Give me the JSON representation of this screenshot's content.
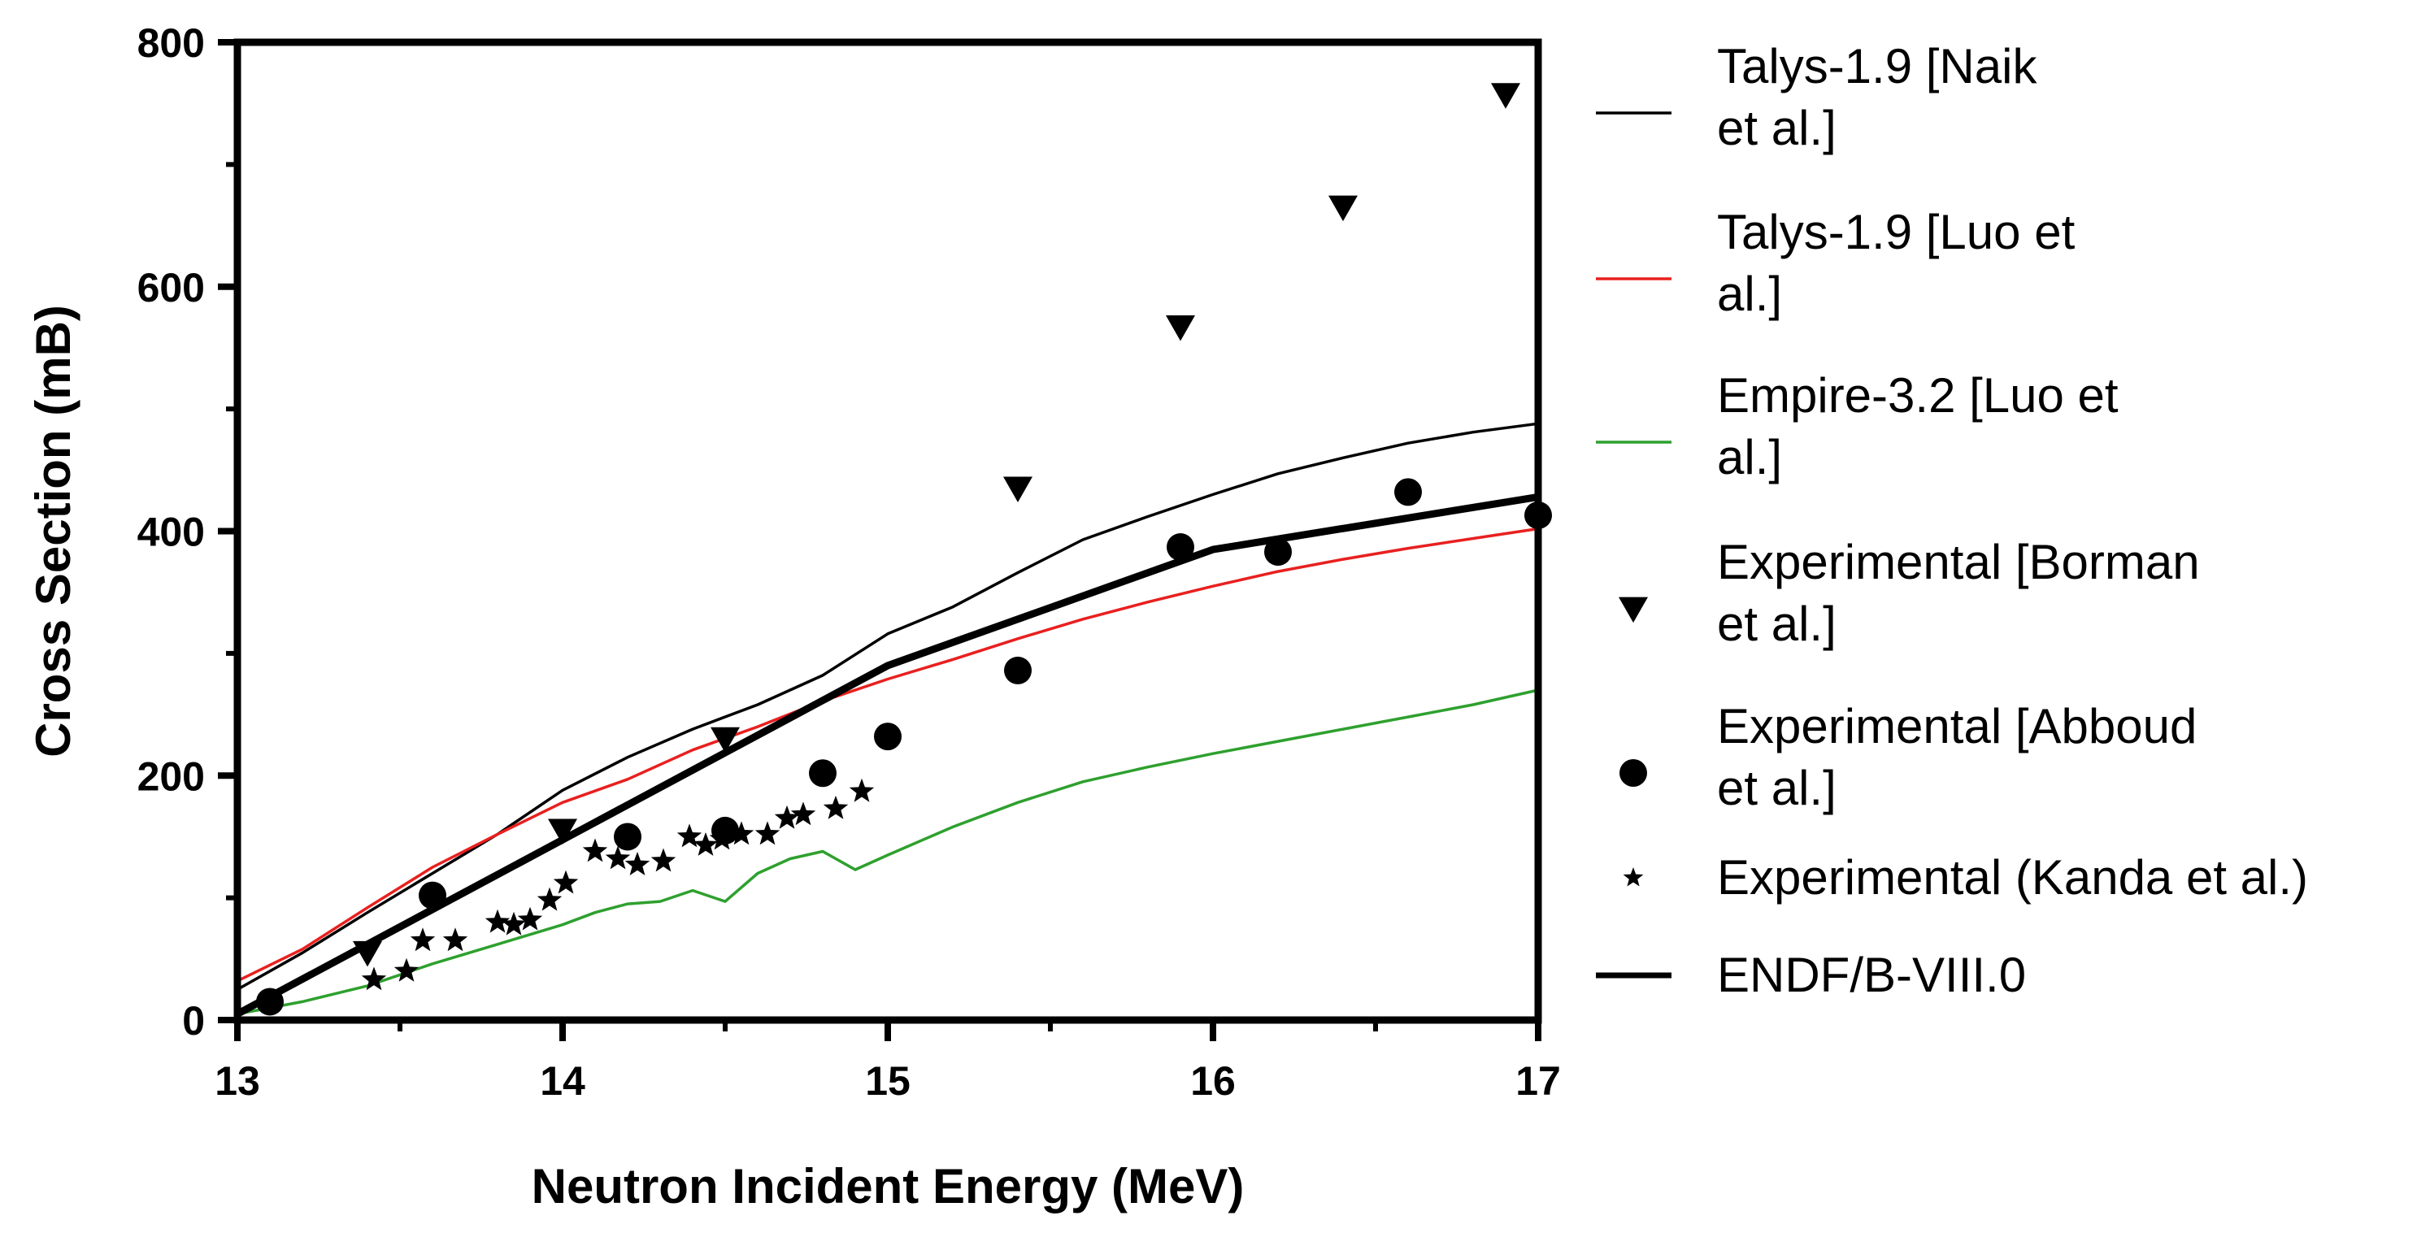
{
  "chart_data": {
    "type": "line",
    "title": "",
    "xlabel": "Neutron Incident  Energy (MeV)",
    "ylabel": "Cross  Section (mB)",
    "xlim": [
      13,
      17
    ],
    "ylim": [
      0,
      800
    ],
    "xticks": [
      13,
      14,
      15,
      16,
      17
    ],
    "yticks": [
      0,
      200,
      400,
      600,
      800
    ],
    "grid": false,
    "legend_position": "right",
    "series": [
      {
        "name": "Talys-1.9 [Naik et al.]",
        "legend_lines": [
          "Talys-1.9 [Naik",
          "et al.]"
        ],
        "kind": "line",
        "color": "#000000",
        "line_weight": "thin",
        "x": [
          13.0,
          13.2,
          13.4,
          13.6,
          13.8,
          14.0,
          14.2,
          14.4,
          14.6,
          14.8,
          15.0,
          15.2,
          15.4,
          15.6,
          15.8,
          16.0,
          16.2,
          16.4,
          16.6,
          16.8,
          17.0
        ],
        "y": [
          25,
          55,
          88,
          120,
          152,
          188,
          215,
          238,
          258,
          282,
          316,
          338,
          366,
          393,
          412,
          430,
          447,
          460,
          472,
          481,
          488
        ]
      },
      {
        "name": "Talys-1.9 [Luo et al.]",
        "legend_lines": [
          "Talys-1.9 [Luo et",
          "al.]"
        ],
        "kind": "line",
        "color": "#e8201f",
        "line_weight": "thin",
        "x": [
          13.0,
          13.2,
          13.4,
          13.6,
          13.8,
          14.0,
          14.2,
          14.4,
          14.6,
          14.8,
          15.0,
          15.2,
          15.4,
          15.6,
          15.8,
          16.0,
          16.2,
          16.4,
          16.6,
          16.8,
          17.0
        ],
        "y": [
          32,
          58,
          92,
          125,
          152,
          178,
          197,
          221,
          240,
          261,
          279,
          295,
          312,
          328,
          342,
          355,
          367,
          377,
          386,
          394,
          402
        ]
      },
      {
        "name": "Empire-3.2 [Luo et al.]",
        "legend_lines": [
          "Empire-3.2 [Luo et",
          "al.]"
        ],
        "kind": "line",
        "color": "#2ea02e",
        "line_weight": "thin",
        "x": [
          13.0,
          13.2,
          13.4,
          13.6,
          13.8,
          14.0,
          14.1,
          14.2,
          14.3,
          14.4,
          14.5,
          14.6,
          14.7,
          14.8,
          14.9,
          15.0,
          15.2,
          15.4,
          15.6,
          15.8,
          16.0,
          16.2,
          16.4,
          16.6,
          16.8,
          17.0
        ],
        "y": [
          5,
          15,
          28,
          46,
          62,
          78,
          88,
          95,
          97,
          106,
          97,
          120,
          132,
          138,
          123,
          135,
          158,
          178,
          195,
          207,
          218,
          228,
          238,
          248,
          258,
          270
        ]
      },
      {
        "name": "Experimental [Borman et al.]",
        "legend_lines": [
          "Experimental [Borman",
          "et al.]"
        ],
        "kind": "scatter",
        "marker": "triangle-down",
        "color": "#000000",
        "x": [
          13.4,
          14.0,
          14.5,
          15.4,
          15.9,
          16.4,
          16.9
        ],
        "y": [
          55,
          155,
          230,
          435,
          567,
          665,
          757
        ]
      },
      {
        "name": "Experimental [Abboud et al.]",
        "legend_lines": [
          "Experimental [Abboud",
          "et al.]"
        ],
        "kind": "scatter",
        "marker": "circle",
        "color": "#000000",
        "x": [
          13.1,
          13.6,
          14.2,
          14.5,
          14.8,
          15.0,
          15.4,
          15.9,
          16.2,
          16.6,
          17.0
        ],
        "y": [
          15,
          102,
          150,
          155,
          202,
          232,
          286,
          387,
          383,
          432,
          413
        ]
      },
      {
        "name": "Experimental (Kanda et al.)",
        "legend_lines": [
          "Experimental (Kanda et al.)"
        ],
        "kind": "scatter",
        "marker": "star",
        "color": "#000000",
        "x": [
          13.42,
          13.52,
          13.57,
          13.67,
          13.8,
          13.85,
          13.9,
          13.96,
          14.01,
          14.1,
          14.17,
          14.23,
          14.31,
          14.39,
          14.44,
          14.49,
          14.55,
          14.63,
          14.69,
          14.74,
          14.84,
          14.92
        ],
        "y": [
          33,
          40,
          65,
          65,
          80,
          78,
          82,
          98,
          112,
          138,
          132,
          127,
          130,
          150,
          143,
          148,
          152,
          152,
          165,
          168,
          173,
          187
        ]
      },
      {
        "name": "ENDF/B-VIII.0",
        "legend_lines": [
          "ENDF/B-VIII.0"
        ],
        "kind": "line",
        "color": "#000000",
        "line_weight": "thick",
        "x": [
          13.0,
          15.0,
          16.0,
          17.0
        ],
        "y": [
          5,
          290,
          385,
          428
        ]
      }
    ]
  }
}
